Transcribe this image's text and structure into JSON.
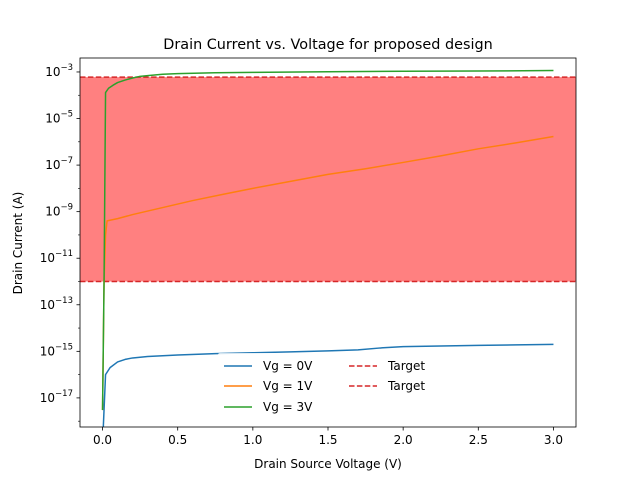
{
  "chart_data": {
    "type": "line",
    "title": "Drain Current vs. Voltage for proposed design",
    "xlabel": "Drain Source Voltage (V)",
    "ylabel": "Drain Current (A)",
    "xlim": [
      -0.15,
      3.15
    ],
    "ylim_exp": [
      -18.25,
      -2.4
    ],
    "yscale": "log",
    "grid": false,
    "legend_placement": "lower center",
    "xticks": [
      {
        "value": 0.0,
        "label": "0.0"
      },
      {
        "value": 0.5,
        "label": "0.5"
      },
      {
        "value": 1.0,
        "label": "1.0"
      },
      {
        "value": 1.5,
        "label": "1.5"
      },
      {
        "value": 2.0,
        "label": "2.0"
      },
      {
        "value": 2.5,
        "label": "2.5"
      },
      {
        "value": 3.0,
        "label": "3.0"
      }
    ],
    "yticks": [
      {
        "exp": -17,
        "base": "10",
        "sup": "−17"
      },
      {
        "exp": -15,
        "base": "10",
        "sup": "−15"
      },
      {
        "exp": -13,
        "base": "10",
        "sup": "−13"
      },
      {
        "exp": -11,
        "base": "10",
        "sup": "−11"
      },
      {
        "exp": -9,
        "base": "10",
        "sup": "−9"
      },
      {
        "exp": -7,
        "base": "10",
        "sup": "−7"
      },
      {
        "exp": -5,
        "base": "10",
        "sup": "−5"
      },
      {
        "exp": -3,
        "base": "10",
        "sup": "−3"
      }
    ],
    "target_band": {
      "low": 1e-12,
      "high": 0.0006,
      "color": "#ff8080"
    },
    "target_lines": [
      {
        "name": "Target",
        "value": 0.0006,
        "color": "#d62728"
      },
      {
        "name": "Target",
        "value": 1e-12,
        "color": "#d62728"
      }
    ],
    "series": [
      {
        "name": "Vg = 0V",
        "color": "#1f77b4",
        "x": [
          0.0,
          0.02,
          0.05,
          0.1,
          0.15,
          0.2,
          0.3,
          0.5,
          0.75,
          1.0,
          1.25,
          1.5,
          1.7,
          1.85,
          2.0,
          2.25,
          2.5,
          2.75,
          3.0
        ],
        "y": [
          1e-19,
          1e-16,
          2e-16,
          3.5e-16,
          4.5e-16,
          5.2e-16,
          6e-16,
          7e-16,
          8e-16,
          8.7e-16,
          9.5e-16,
          1.05e-15,
          1.15e-15,
          1.4e-15,
          1.6e-15,
          1.7e-15,
          1.8e-15,
          1.9e-15,
          2e-15
        ]
      },
      {
        "name": "Vg = 1V",
        "color": "#ff7f0e",
        "x": [
          0.0,
          0.01,
          0.02,
          0.03,
          0.1,
          0.2,
          0.4,
          0.6,
          0.8,
          1.0,
          1.25,
          1.5,
          1.75,
          2.0,
          2.25,
          2.5,
          2.75,
          3.0
        ],
        "y": [
          3e-18,
          1e-12,
          1e-10,
          4e-10,
          5e-10,
          7.5e-10,
          1.5e-09,
          3e-09,
          5.5e-09,
          1e-08,
          2e-08,
          4e-08,
          7e-08,
          1.3e-07,
          2.5e-07,
          5e-07,
          9e-07,
          1.7e-06
        ]
      },
      {
        "name": "Vg = 3V",
        "color": "#2ca02c",
        "x": [
          0.0,
          0.01,
          0.02,
          0.04,
          0.07,
          0.1,
          0.15,
          0.2,
          0.25,
          0.3,
          0.4,
          0.5,
          0.75,
          1.0,
          1.5,
          2.0,
          2.5,
          3.0
        ],
        "y": [
          3e-18,
          1e-12,
          0.00013,
          0.0002,
          0.00027,
          0.00035,
          0.00045,
          0.00055,
          0.00065,
          0.0007,
          0.0008,
          0.00085,
          0.00092,
          0.00096,
          0.00102,
          0.00107,
          0.0011,
          0.00115
        ]
      }
    ]
  }
}
